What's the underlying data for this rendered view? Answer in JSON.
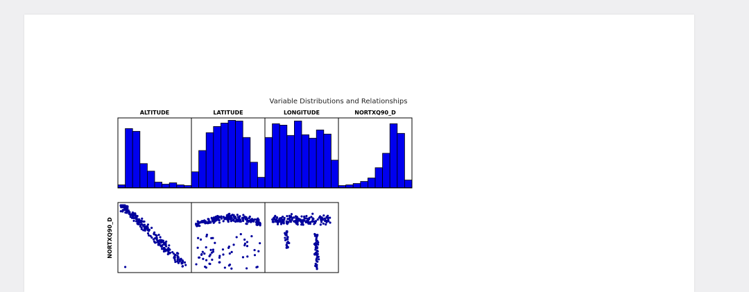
{
  "chart_data": {
    "type": "pairplot",
    "title": "Variable Distributions and Relationships",
    "variables": [
      "ALTITUDE",
      "LATITUDE",
      "LONGITUDE",
      "NORTXQ90_D"
    ],
    "row_label": "NORTXQ90_D",
    "colors": {
      "bars": "#0000ee",
      "points": "#00009c",
      "edge": "#000000"
    },
    "histograms": [
      {
        "variable": "ALTITUDE",
        "counts": [
          4,
          86,
          82,
          35,
          24,
          8,
          5,
          7,
          4,
          3
        ]
      },
      {
        "variable": "LATITUDE",
        "counts": [
          23,
          54,
          80,
          89,
          94,
          98,
          97,
          73,
          37,
          15
        ]
      },
      {
        "variable": "LONGITUDE",
        "counts": [
          73,
          93,
          91,
          76,
          97,
          77,
          72,
          84,
          78,
          40
        ]
      },
      {
        "variable": "NORTXQ90_D",
        "counts": [
          3,
          4,
          6,
          9,
          14,
          29,
          50,
          93,
          79,
          11
        ]
      }
    ],
    "scatter_note": "NORTXQ90_D (y) against ALTITUDE, LATITUDE, LONGITUDE (x); dense point clouds, no axis ticks shown",
    "grid": false
  },
  "colors": {
    "page_bg": "#efeff1",
    "sheet_bg": "#ffffff"
  }
}
